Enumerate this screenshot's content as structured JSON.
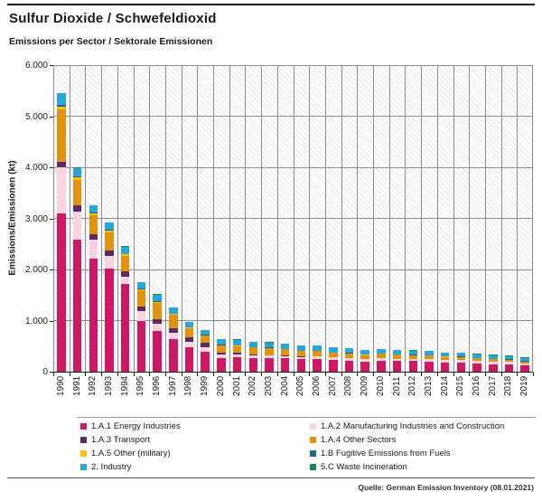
{
  "page": {
    "title": "Sulfur Dioxide / Schwefeldioxid",
    "subtitle": "Emissions per Sector / Sektorale Emissionen",
    "source": "Quelle: German Emission Inventory (08.01.2021)"
  },
  "chart_data": {
    "type": "bar",
    "stacked": true,
    "title": "Sulfur Dioxide / Schwefeldioxid",
    "subtitle": "Emissions per Sector / Sektorale Emissionen",
    "xlabel": "",
    "ylabel": "Emissions/Emissionen (kt)",
    "unit": "kt",
    "ylim": [
      0,
      6000
    ],
    "ytick_interval": 1000,
    "ytick_labels": [
      "0",
      "1.000",
      "2.000",
      "3.000",
      "4.000",
      "5.000",
      "6.000"
    ],
    "grid": true,
    "background_hatch": true,
    "legend_position": "bottom",
    "categories": [
      "1990",
      "1991",
      "1992",
      "1993",
      "1994",
      "1995",
      "1996",
      "1997",
      "1998",
      "1999",
      "2000",
      "2001",
      "2002",
      "2003",
      "2004",
      "2005",
      "2006",
      "2007",
      "2008",
      "2009",
      "2010",
      "2011",
      "2012",
      "2013",
      "2014",
      "2015",
      "2016",
      "2017",
      "2018",
      "2019"
    ],
    "series": [
      {
        "key": "s1a1",
        "label": "1.A.1 Energy Industries",
        "color": "#CC1964",
        "values": [
          3100,
          2580,
          2210,
          2010,
          1710,
          990,
          790,
          640,
          480,
          390,
          270,
          280,
          270,
          270,
          260,
          240,
          245,
          230,
          220,
          200,
          215,
          210,
          205,
          200,
          185,
          180,
          165,
          150,
          150,
          120
        ]
      },
      {
        "key": "s1a2",
        "label": "1.A.2 Manufacturing Industries and Construction",
        "color": "#F8D3E2",
        "values": [
          900,
          560,
          370,
          260,
          155,
          195,
          150,
          130,
          110,
          90,
          60,
          55,
          50,
          50,
          50,
          50,
          50,
          45,
          45,
          40,
          45,
          45,
          45,
          45,
          45,
          45,
          40,
          40,
          38,
          35
        ]
      },
      {
        "key": "s1a3",
        "label": "1.A.3 Transport",
        "color": "#5C2A67",
        "values": [
          115,
          110,
          115,
          105,
          105,
          85,
          80,
          80,
          80,
          80,
          45,
          30,
          15,
          8,
          5,
          3,
          2,
          2,
          2,
          2,
          2,
          2,
          2,
          2,
          2,
          2,
          2,
          2,
          2,
          2
        ]
      },
      {
        "key": "s1a4",
        "label": "1.A.4 Other Sectors",
        "color": "#E1930E",
        "values": [
          1010,
          500,
          360,
          355,
          295,
          315,
          330,
          260,
          180,
          140,
          140,
          140,
          135,
          130,
          120,
          110,
          105,
          90,
          90,
          85,
          85,
          75,
          70,
          70,
          60,
          60,
          55,
          50,
          45,
          42
        ]
      },
      {
        "key": "s1a5",
        "label": "1.A.5 Other (military)",
        "color": "#FCC200",
        "values": [
          65,
          55,
          40,
          35,
          30,
          25,
          20,
          15,
          10,
          8,
          5,
          5,
          4,
          4,
          3,
          3,
          3,
          3,
          3,
          3,
          3,
          3,
          3,
          3,
          3,
          3,
          3,
          3,
          3,
          3
        ]
      },
      {
        "key": "s1b",
        "label": "1.B Fugitive Emissions from Fuels",
        "color": "#19698B",
        "values": [
          30,
          25,
          20,
          20,
          15,
          15,
          15,
          15,
          10,
          10,
          10,
          10,
          10,
          10,
          10,
          10,
          10,
          10,
          10,
          8,
          8,
          8,
          8,
          8,
          8,
          8,
          8,
          8,
          8,
          8
        ]
      },
      {
        "key": "s2",
        "label": "2. Industry",
        "color": "#29A5D9",
        "values": [
          230,
          160,
          145,
          135,
          140,
          130,
          125,
          120,
          100,
          90,
          105,
          105,
          100,
          100,
          100,
          95,
          95,
          95,
          90,
          80,
          80,
          80,
          80,
          75,
          70,
          70,
          70,
          70,
          60,
          60
        ]
      },
      {
        "key": "s5c",
        "label": "5.C Waste Incineration",
        "color": "#12894A",
        "values": [
          5,
          5,
          5,
          5,
          5,
          5,
          5,
          5,
          5,
          5,
          8,
          8,
          8,
          8,
          8,
          8,
          8,
          8,
          8,
          8,
          8,
          8,
          8,
          8,
          8,
          8,
          8,
          8,
          8,
          8
        ]
      }
    ],
    "legend_row_major_order": [
      "s1a1",
      "s1a2",
      "s1a3",
      "s1a4",
      "s1a5",
      "s1b",
      "s2",
      "s5c"
    ]
  }
}
